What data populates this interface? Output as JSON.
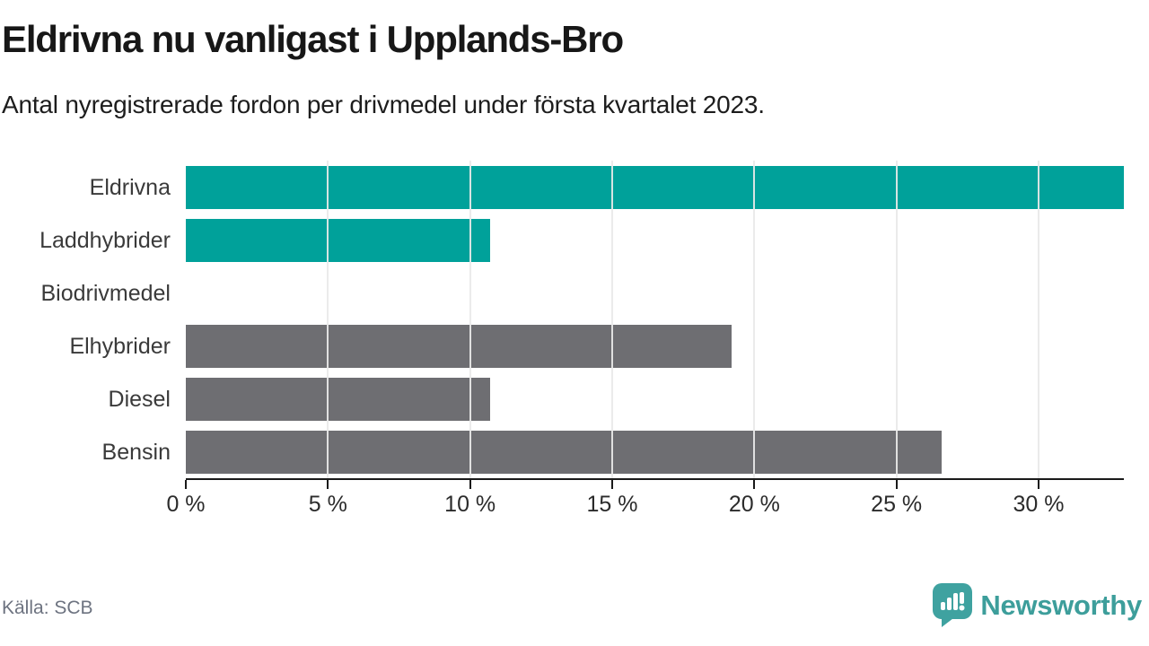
{
  "page": {
    "title": "Eldrivna nu vanligast i Upplands-Bro",
    "subtitle": "Antal nyregistrerade fordon per drivmedel under första kvartalet 2023.",
    "source": "Källa: SCB",
    "brand": "Newsworthy"
  },
  "colors": {
    "bar_teal": "#00A19A",
    "bar_gray": "#6E6E72",
    "brand_teal": "#3FA2A0",
    "grid": "#E9E9E9",
    "axis": "#1A1A1A"
  },
  "chart_data": {
    "type": "bar",
    "orientation": "horizontal",
    "title": "Eldrivna nu vanligast i Upplands-Bro",
    "subtitle": "Antal nyregistrerade fordon per drivmedel under första kvartalet 2023.",
    "categories": [
      "Eldrivna",
      "Laddhybrider",
      "Biodrivmedel",
      "Elhybrider",
      "Diesel",
      "Bensin"
    ],
    "values": [
      33.0,
      10.7,
      0,
      19.2,
      10.7,
      26.6
    ],
    "unit": "%",
    "bar_colors": [
      "#00A19A",
      "#00A19A",
      "#00A19A",
      "#6E6E72",
      "#6E6E72",
      "#6E6E72"
    ],
    "xlim": [
      0,
      33
    ],
    "xticks": [
      0,
      5,
      10,
      15,
      20,
      25,
      30
    ],
    "xtick_suffix": " %",
    "grid": "vertical-only",
    "legend": "none",
    "source": "SCB"
  }
}
